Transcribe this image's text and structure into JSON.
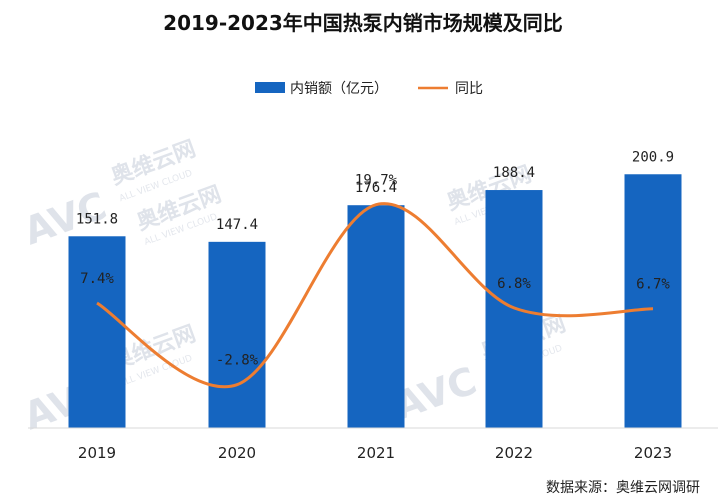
{
  "watermark": {
    "logo": "AVC",
    "cn": "奥维云网",
    "en": "ALL VIEW CLOUD"
  },
  "source": "数据来源：奥维云网调研",
  "chart_data": {
    "type": "bar",
    "title": "2019-2023年中国热泵内销市场规模及同比",
    "categories": [
      "2019",
      "2020",
      "2021",
      "2022",
      "2023"
    ],
    "series": [
      {
        "name": "内销额（亿元）",
        "type": "bar",
        "color": "#1565c0",
        "values": [
          151.8,
          147.4,
          176.4,
          188.4,
          200.9
        ],
        "labels": [
          "151.8",
          "147.4",
          "176.4",
          "188.4",
          "200.9"
        ]
      },
      {
        "name": "同比",
        "type": "line",
        "smooth": true,
        "color": "#ed7d31",
        "values": [
          7.4,
          -2.8,
          19.7,
          6.8,
          6.7
        ],
        "labels": [
          "7.4%",
          "-2.8%",
          "19.7%",
          "6.8%",
          "6.7%"
        ]
      }
    ],
    "legend_position": "top",
    "grid": false
  }
}
